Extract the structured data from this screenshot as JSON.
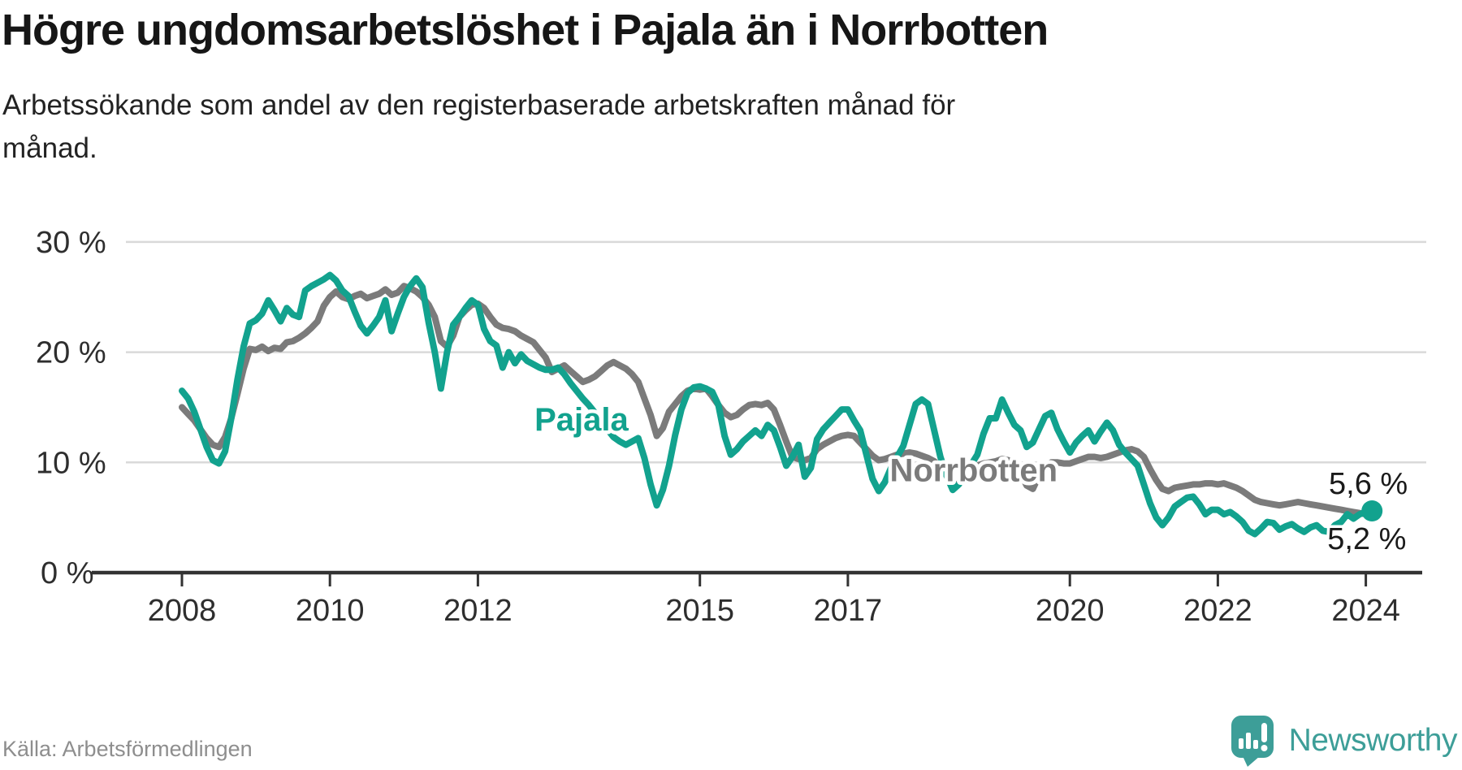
{
  "header": {
    "title": "Högre ungdomsarbetslöshet i Pajala än i Norrbotten",
    "subtitle_line1": "Arbetssökande som andel av den registerbaserade arbetskraften månad för",
    "subtitle_line2": "månad."
  },
  "footer": {
    "source": "Källa: Arbetsförmedlingen",
    "logo_text": "Newsworthy"
  },
  "colors": {
    "pajala": "#12a28e",
    "norrbotten": "#7b7b7b",
    "axis": "#333333",
    "grid": "#d9d9d9",
    "tick_text": "#2e2e2e",
    "annotation_text": "#1a1a1a",
    "logo_teal": "#3d9e98"
  },
  "chart_data": {
    "type": "line",
    "title": "Högre ungdomsarbetslöshet i Pajala än i Norrbotten",
    "subtitle": "Arbetssökande som andel av den registerbaserade arbetskraften månad för månad.",
    "x_start": 2008,
    "x_step_months": 1,
    "xlim": [
      2007.2,
      2024.8
    ],
    "ylim": [
      0,
      31
    ],
    "grid": "horizontal",
    "legend_position": "inline-labels",
    "x_ticks": [
      {
        "value": 2008,
        "label": "2008"
      },
      {
        "value": 2010,
        "label": "2010"
      },
      {
        "value": 2012,
        "label": "2012"
      },
      {
        "value": 2015,
        "label": "2015"
      },
      {
        "value": 2017,
        "label": "2017"
      },
      {
        "value": 2020,
        "label": "2020"
      },
      {
        "value": 2022,
        "label": "2022"
      },
      {
        "value": 2024,
        "label": "2024"
      }
    ],
    "y_ticks": [
      {
        "value": 30,
        "label": "30 %"
      },
      {
        "value": 20,
        "label": "20 %"
      },
      {
        "value": 10,
        "label": "10 %"
      },
      {
        "value": 0,
        "label": "0 %"
      }
    ],
    "series": [
      {
        "name": "Pajala",
        "color": "#12a28e",
        "end_dot": true,
        "end_label": {
          "text": "5,6 %",
          "x": 2023.5,
          "y": 7.15
        },
        "name_label": {
          "x": 2013.4,
          "y": 12.9
        },
        "values": [
          16.5,
          15.8,
          14.6,
          13.0,
          11.4,
          10.2,
          9.9,
          11.0,
          14.0,
          17.5,
          20.5,
          22.6,
          22.9,
          23.5,
          24.7,
          23.8,
          22.8,
          24.0,
          23.4,
          23.2,
          25.6,
          26.0,
          26.3,
          26.6,
          27.0,
          26.5,
          25.6,
          25.1,
          23.7,
          22.4,
          21.7,
          22.4,
          23.2,
          24.7,
          21.9,
          23.5,
          25.0,
          26.0,
          26.7,
          25.9,
          22.7,
          20.0,
          16.7,
          20.0,
          22.5,
          23.2,
          24.0,
          24.7,
          24.3,
          22.1,
          21.0,
          20.6,
          18.6,
          20.0,
          19.0,
          19.8,
          19.2,
          18.9,
          18.6,
          18.4,
          18.4,
          18.6,
          18.0,
          17.2,
          16.5,
          15.8,
          15.2,
          14.5,
          13.8,
          13.0,
          12.3,
          11.9,
          11.6,
          11.9,
          12.2,
          10.4,
          8.0,
          6.1,
          7.5,
          9.7,
          12.5,
          14.8,
          16.3,
          16.8,
          16.9,
          16.7,
          16.4,
          15.2,
          12.4,
          10.7,
          11.2,
          11.9,
          12.4,
          12.9,
          12.4,
          13.4,
          12.9,
          11.4,
          9.7,
          10.5,
          11.6,
          8.7,
          9.5,
          12.1,
          13.0,
          13.6,
          14.2,
          14.8,
          14.8,
          13.8,
          12.9,
          10.7,
          8.5,
          7.4,
          8.2,
          9.5,
          10.5,
          11.5,
          13.4,
          15.3,
          15.7,
          15.3,
          12.9,
          10.5,
          8.8,
          7.5,
          8.0,
          9.0,
          9.8,
          10.7,
          12.6,
          14.0,
          14.0,
          15.7,
          14.5,
          13.4,
          12.9,
          11.4,
          11.8,
          13.0,
          14.2,
          14.5,
          13.0,
          11.9,
          10.9,
          11.8,
          12.4,
          12.9,
          11.9,
          12.8,
          13.6,
          12.9,
          11.6,
          10.9,
          10.3,
          9.7,
          8.0,
          6.3,
          5.0,
          4.3,
          5.0,
          6.0,
          6.4,
          6.8,
          6.9,
          6.2,
          5.3,
          5.7,
          5.7,
          5.3,
          5.5,
          5.1,
          4.6,
          3.8,
          3.5,
          4.0,
          4.6,
          4.5,
          3.9,
          4.2,
          4.4,
          4.0,
          3.7,
          4.1,
          4.3,
          3.8,
          3.7,
          4.3,
          4.6,
          5.3,
          4.9,
          5.3,
          5.5,
          5.6
        ]
      },
      {
        "name": "Norrbotten",
        "color": "#7b7b7b",
        "end_dot": false,
        "end_label": {
          "text": "5,2 %",
          "x": 2023.48,
          "y": 2.15
        },
        "name_label": {
          "x": 2018.7,
          "y": 8.3
        },
        "values": [
          15.0,
          14.4,
          13.8,
          13.0,
          12.2,
          11.6,
          11.4,
          12.3,
          14.0,
          16.2,
          18.5,
          20.3,
          20.2,
          20.5,
          20.1,
          20.4,
          20.3,
          20.9,
          21.0,
          21.3,
          21.7,
          22.2,
          22.8,
          24.2,
          25.0,
          25.5,
          25.0,
          24.8,
          25.1,
          25.3,
          24.9,
          25.1,
          25.3,
          25.7,
          25.2,
          25.4,
          26.0,
          25.8,
          25.5,
          25.0,
          24.3,
          23.2,
          21.0,
          20.5,
          21.5,
          23.2,
          23.8,
          24.3,
          24.4,
          24.0,
          23.2,
          22.5,
          22.2,
          22.1,
          21.9,
          21.5,
          21.2,
          20.9,
          20.2,
          19.5,
          18.2,
          18.5,
          18.8,
          18.3,
          17.8,
          17.3,
          17.5,
          17.8,
          18.3,
          18.8,
          19.1,
          18.8,
          18.5,
          18.0,
          17.3,
          15.8,
          14.3,
          12.4,
          13.1,
          14.6,
          15.3,
          16.0,
          16.5,
          16.7,
          16.6,
          16.7,
          16.0,
          15.2,
          14.5,
          14.1,
          14.3,
          14.8,
          15.2,
          15.3,
          15.2,
          15.4,
          14.8,
          13.4,
          11.9,
          10.5,
          10.3,
          10.2,
          10.4,
          11.2,
          11.6,
          11.9,
          12.2,
          12.4,
          12.5,
          12.4,
          11.8,
          11.2,
          10.6,
          10.2,
          10.3,
          10.5,
          10.7,
          10.8,
          10.9,
          10.8,
          10.6,
          10.4,
          10.1,
          9.6,
          8.8,
          7.8,
          8.1,
          8.9,
          9.4,
          9.7,
          9.9,
          10.0,
          10.1,
          10.3,
          10.2,
          9.8,
          9.0,
          7.9,
          7.6,
          8.8,
          9.6,
          10.0,
          10.0,
          9.9,
          9.9,
          10.1,
          10.3,
          10.5,
          10.5,
          10.4,
          10.5,
          10.7,
          10.9,
          11.1,
          11.2,
          11.0,
          10.5,
          9.4,
          8.4,
          7.6,
          7.4,
          7.7,
          7.8,
          7.9,
          8.0,
          8.0,
          8.1,
          8.1,
          8.0,
          8.1,
          7.9,
          7.7,
          7.4,
          7.0,
          6.6,
          6.4,
          6.3,
          6.2,
          6.1,
          6.2,
          6.3,
          6.4,
          6.3,
          6.2,
          6.1,
          6.0,
          5.9,
          5.8,
          5.7,
          5.6,
          5.5,
          5.4,
          5.3,
          5.2
        ]
      }
    ]
  }
}
